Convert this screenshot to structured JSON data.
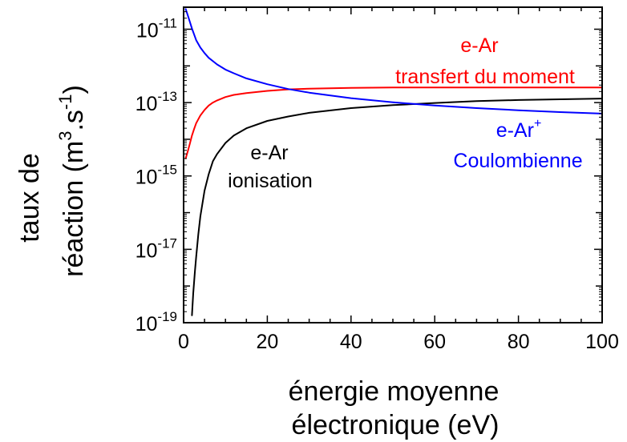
{
  "chart_data": {
    "type": "line",
    "title": "",
    "xlabel_line1": "énergie moyenne",
    "xlabel_line2": "électronique (eV)",
    "ylabel_line1": "taux de",
    "ylabel_line2_prefix": "réaction (m",
    "ylabel_sup1": "3",
    "ylabel_mid": ".s",
    "ylabel_sup2": "-1",
    "ylabel_suffix": ")",
    "xlim": [
      0,
      100
    ],
    "ylim_log10": [
      -19,
      -10.4
    ],
    "y_scale": "log",
    "grid": false,
    "x_ticks": [
      0,
      20,
      40,
      60,
      80,
      100
    ],
    "x_tick_labels": [
      "0",
      "20",
      "40",
      "60",
      "80",
      "100"
    ],
    "y_ticks_exp": [
      -11,
      -13,
      -15,
      -17,
      -19
    ],
    "y_tick_base": "10",
    "y_tick_exp_labels": [
      "-11",
      "-13",
      "-15",
      "-17",
      "-19"
    ],
    "series": [
      {
        "key": "momentum",
        "color": "#ff0000",
        "label_line1": "e-Ar",
        "label_line2": "transfert du moment",
        "x": [
          0.5,
          1,
          1.5,
          2,
          2.5,
          3,
          4,
          5,
          6,
          7,
          8,
          10,
          12,
          15,
          20,
          25,
          30,
          40,
          50,
          60,
          70,
          80,
          90,
          100
        ],
        "log10y": [
          -14.52,
          -14.33,
          -14.12,
          -13.9,
          -13.72,
          -13.56,
          -13.35,
          -13.2,
          -13.08,
          -13.0,
          -12.94,
          -12.85,
          -12.79,
          -12.74,
          -12.68,
          -12.64,
          -12.62,
          -12.6,
          -12.59,
          -12.59,
          -12.59,
          -12.59,
          -12.59,
          -12.59
        ]
      },
      {
        "key": "ionisation",
        "color": "#000000",
        "label_line1": "e-Ar",
        "label_line2": "ionisation",
        "x": [
          2,
          2.3,
          2.7,
          3,
          3.5,
          4,
          5,
          6,
          7,
          8,
          10,
          12,
          15,
          20,
          25,
          30,
          40,
          50,
          60,
          70,
          80,
          90,
          100
        ],
        "log10y": [
          -18.8,
          -18.2,
          -17.6,
          -17.2,
          -16.6,
          -16.1,
          -15.4,
          -14.95,
          -14.6,
          -14.4,
          -14.1,
          -13.9,
          -13.7,
          -13.5,
          -13.38,
          -13.28,
          -13.15,
          -13.07,
          -13.01,
          -12.96,
          -12.93,
          -12.91,
          -12.89
        ]
      },
      {
        "key": "coulomb",
        "color": "#0000ff",
        "label_line1": "e-Ar",
        "label_sup": "+",
        "label_line2": "Coulombienne",
        "x": [
          0.5,
          1,
          1.5,
          2,
          3,
          4,
          5,
          6,
          8,
          10,
          12,
          15,
          20,
          25,
          30,
          40,
          50,
          60,
          70,
          80,
          90,
          100
        ],
        "log10y": [
          -10.45,
          -10.62,
          -10.8,
          -10.98,
          -11.3,
          -11.5,
          -11.65,
          -11.78,
          -11.96,
          -12.1,
          -12.2,
          -12.34,
          -12.5,
          -12.63,
          -12.73,
          -12.88,
          -12.99,
          -13.08,
          -13.15,
          -13.21,
          -13.26,
          -13.3
        ]
      }
    ]
  }
}
